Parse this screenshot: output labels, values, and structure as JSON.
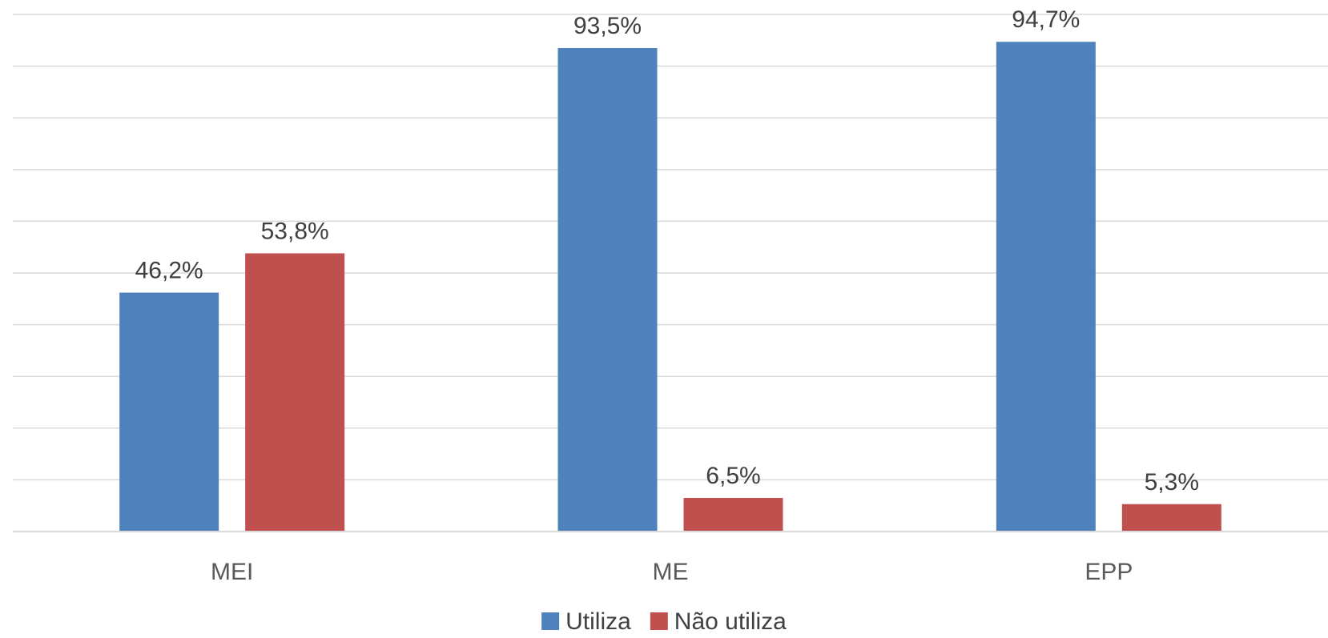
{
  "chart_data": {
    "type": "bar",
    "categories": [
      "MEI",
      "ME",
      "EPP"
    ],
    "series": [
      {
        "name": "Utiliza",
        "values": [
          46.2,
          93.5,
          94.7
        ],
        "labels": [
          "46,2%",
          "93,5%",
          "94,7%"
        ],
        "color": "#4f81bd"
      },
      {
        "name": "Não utiliza",
        "values": [
          53.8,
          6.5,
          5.3
        ],
        "labels": [
          "53,8%",
          "6,5%",
          "5,3%"
        ],
        "color": "#c0504d"
      }
    ],
    "ylim": [
      0,
      100
    ],
    "grid": true,
    "legend": "bottom"
  }
}
